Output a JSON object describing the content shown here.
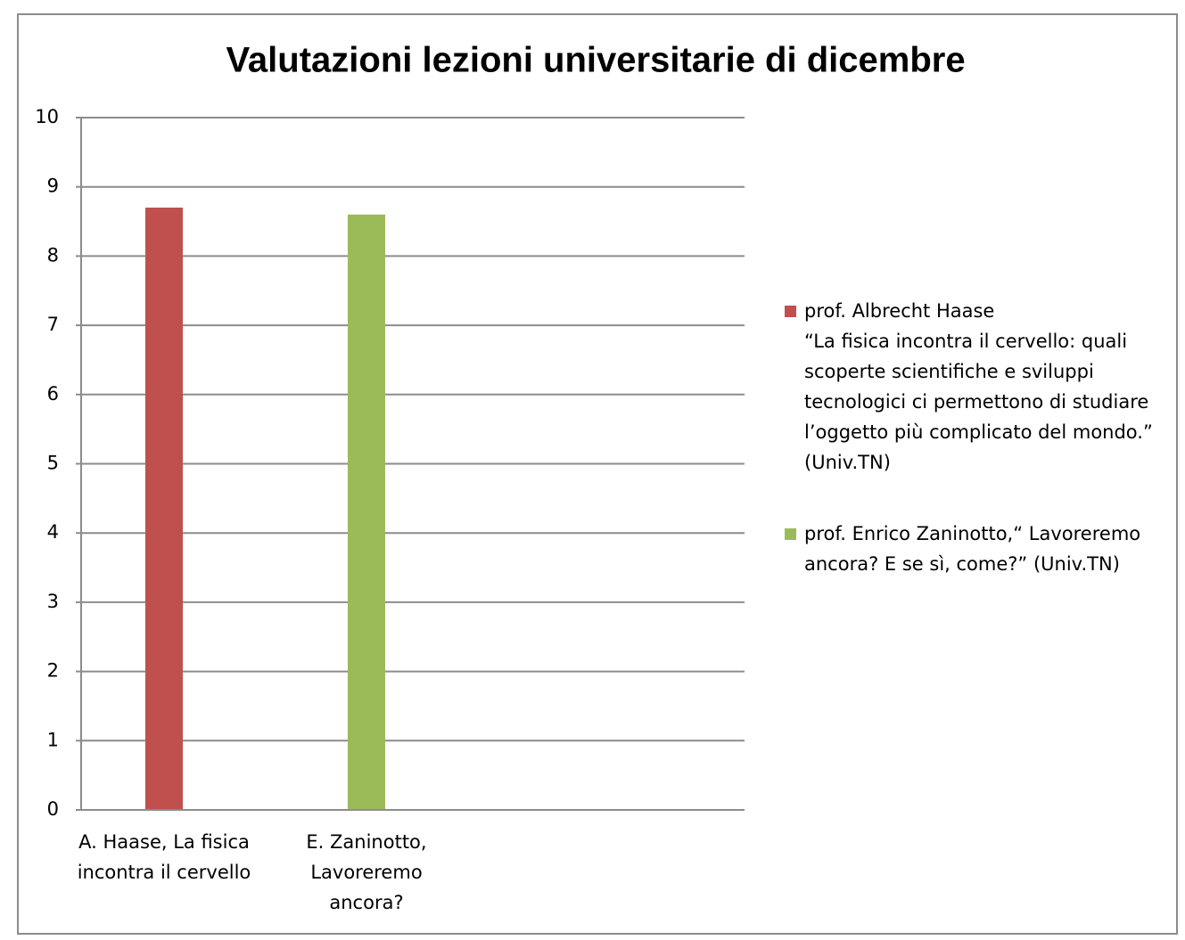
{
  "chart_data": {
    "type": "bar",
    "title": "Valutazioni lezioni universitarie di dicembre",
    "categories": [
      "A. Haase, La fisica incontra il cervello",
      "E. Zaninotto, Lavoreremo ancora?"
    ],
    "series": [
      {
        "name": "prof. Albrecht  Haase\n“La fisica incontra il cervello: quali scoperte scientifiche e sviluppi tecnologici ci permettono di studiare l’oggetto più complicato del mondo.” (Univ.TN)",
        "color": "#c0504d",
        "values": [
          8.7,
          null
        ]
      },
      {
        "name": "prof. Enrico Zaninotto,“ Lavoreremo ancora? E se sì, come?” (Univ.TN)",
        "color": "#9bbb59",
        "values": [
          null,
          8.6
        ]
      }
    ],
    "ylim": [
      0,
      10
    ],
    "yticks": [
      0,
      1,
      2,
      3,
      4,
      5,
      6,
      7,
      8,
      9,
      10
    ],
    "grid": true,
    "legend": "right"
  }
}
